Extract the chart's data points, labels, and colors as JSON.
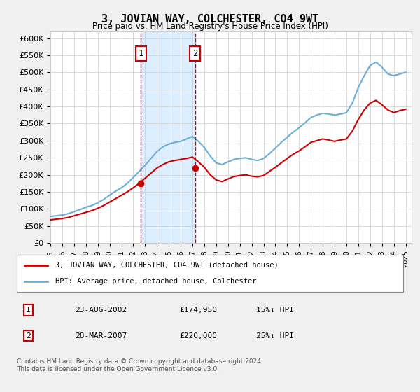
{
  "title": "3, JOVIAN WAY, COLCHESTER, CO4 9WT",
  "subtitle": "Price paid vs. HM Land Registry's House Price Index (HPI)",
  "legend_line1": "3, JOVIAN WAY, COLCHESTER, CO4 9WT (detached house)",
  "legend_line2": "HPI: Average price, detached house, Colchester",
  "transaction1": {
    "date": "23-AUG-2002",
    "price": 174950,
    "label": "1",
    "pct": "15%↓ HPI"
  },
  "transaction2": {
    "date": "28-MAR-2007",
    "price": 220000,
    "label": "2",
    "pct": "25%↓ HPI"
  },
  "footer": "Contains HM Land Registry data © Crown copyright and database right 2024.\nThis data is licensed under the Open Government Licence v3.0.",
  "ylim": [
    0,
    620000
  ],
  "yticks": [
    0,
    50000,
    100000,
    150000,
    200000,
    250000,
    300000,
    350000,
    400000,
    450000,
    500000,
    550000,
    600000
  ],
  "hpi_color": "#6baed6",
  "price_color": "#cc0000",
  "background_color": "#f0f0f0",
  "plot_bg_color": "#ffffff",
  "shade_color": "#ddeeff",
  "marker_color": "#cc0000",
  "vline_color": "#cc0000",
  "grid_color": "#cccccc"
}
